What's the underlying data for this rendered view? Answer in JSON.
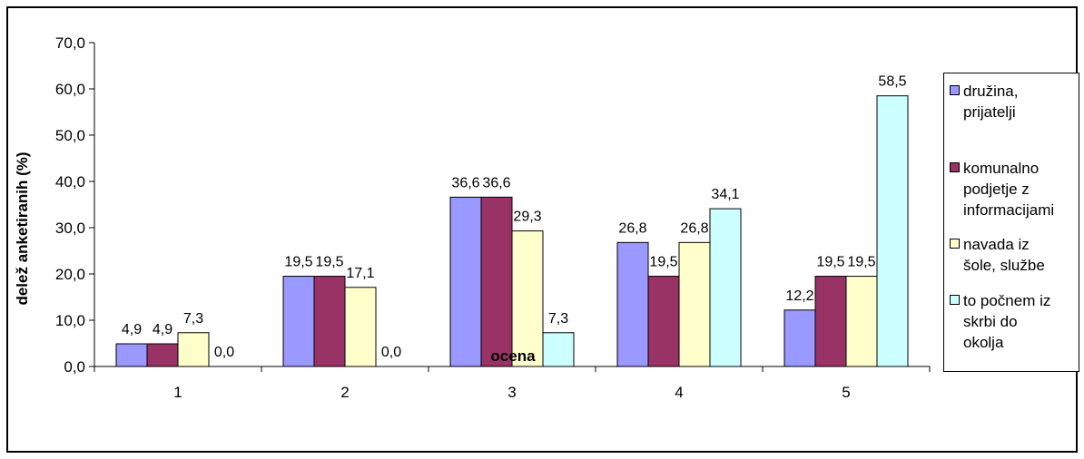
{
  "chart_data": {
    "type": "bar",
    "categories": [
      "1",
      "2",
      "3",
      "4",
      "5"
    ],
    "series": [
      {
        "name": "družina, prijatelji",
        "values": [
          4.9,
          19.5,
          36.6,
          26.8,
          12.2
        ],
        "labels": [
          "4,9",
          "19,5",
          "36,6",
          "26,8",
          "12,2"
        ],
        "color": "#9999ff"
      },
      {
        "name": "komunalno podjetje z informacijami",
        "values": [
          4.9,
          19.5,
          36.6,
          19.5,
          19.5
        ],
        "labels": [
          "4,9",
          "19,5",
          "36,6",
          "19,5",
          "19,5"
        ],
        "color": "#993366"
      },
      {
        "name": "navada iz šole, službe",
        "values": [
          7.3,
          17.1,
          29.3,
          26.8,
          19.5
        ],
        "labels": [
          "7,3",
          "17,1",
          "29,3",
          "26,8",
          "19,5"
        ],
        "color": "#ffffcc"
      },
      {
        "name": "to počnem iz skrbi do okolja",
        "values": [
          0.0,
          0.0,
          7.3,
          34.1,
          58.5
        ],
        "labels": [
          "0,0",
          "0,0",
          "7,3",
          "34,1",
          "58,5"
        ],
        "color": "#ccffff"
      }
    ],
    "y_ticks": [
      "0,0",
      "10,0",
      "20,0",
      "30,0",
      "40,0",
      "50,0",
      "60,0",
      "70,0"
    ],
    "ylim": [
      0,
      70
    ],
    "xlabel": "ocena",
    "ylabel": "delež anketiranih (%)",
    "grid": false,
    "legend": "right"
  },
  "legend": {
    "items": [
      {
        "text": "družina,\nprijatelji"
      },
      {
        "text": "komunalno\npodjetje z\ninformacijami"
      },
      {
        "text": "navada iz\nšole, službe"
      },
      {
        "text": "to počnem iz\nskrbi do\nokolja"
      }
    ]
  }
}
